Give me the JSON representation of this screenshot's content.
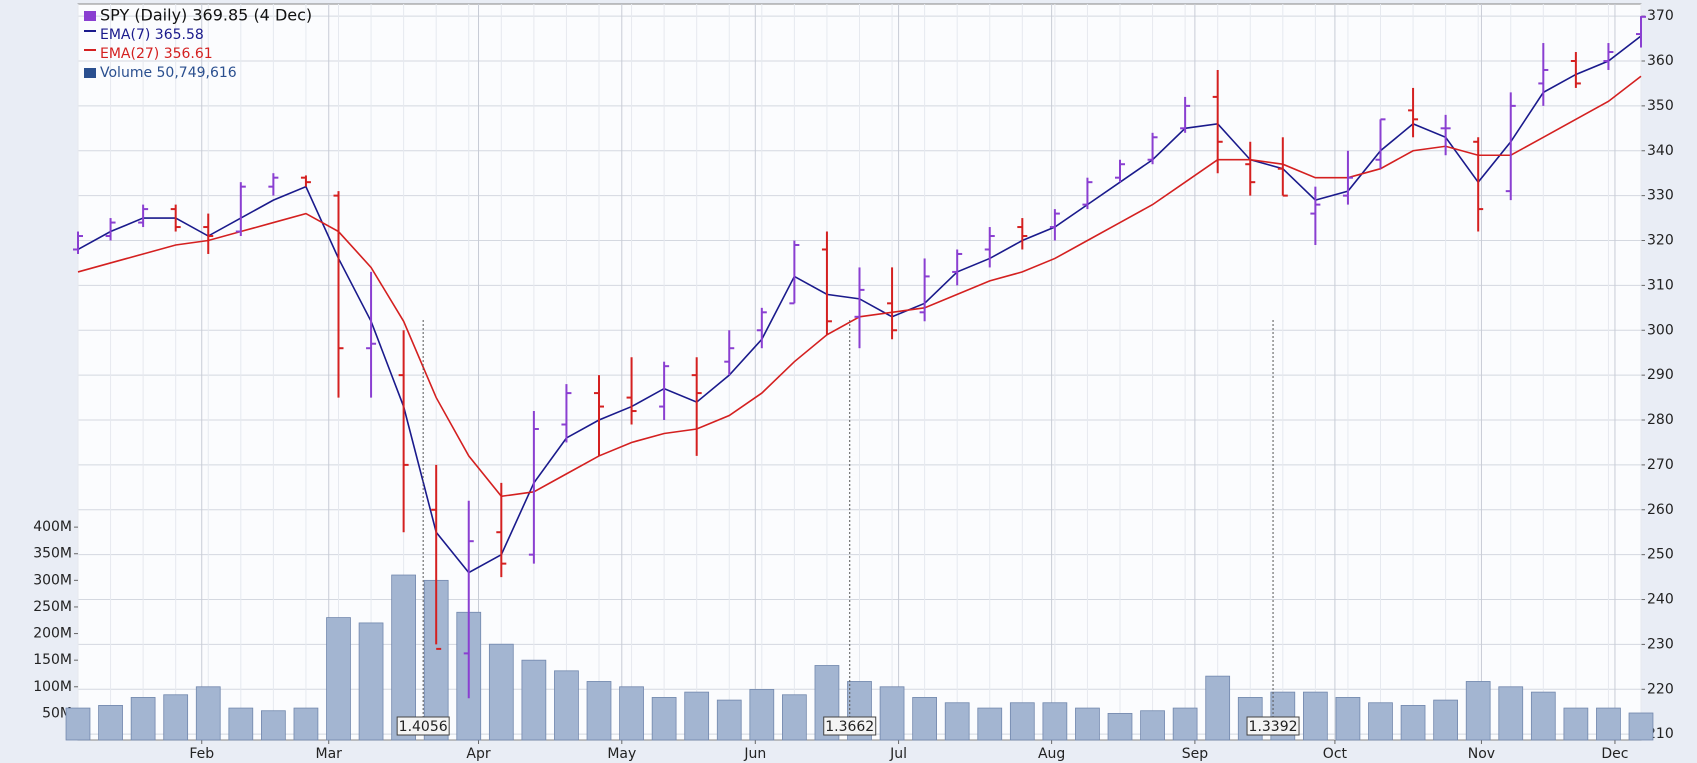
{
  "chart_data": {
    "type": "ohlc",
    "legend": [
      "SPY (Daily) 369.85 (4 Dec)",
      "EMA(7) 365.58",
      "EMA(27) 356.61",
      "Volume 50,749,616"
    ],
    "xlim": [
      0,
      48
    ],
    "xticks": [
      {
        "value": 3.8,
        "label": "Feb"
      },
      {
        "value": 7.7,
        "label": "Mar"
      },
      {
        "value": 12.3,
        "label": "Apr"
      },
      {
        "value": 16.7,
        "label": "May"
      },
      {
        "value": 20.8,
        "label": "Jun"
      },
      {
        "value": 25.2,
        "label": "Jul"
      },
      {
        "value": 29.9,
        "label": "Aug"
      },
      {
        "value": 34.3,
        "label": "Sep"
      },
      {
        "value": 38.6,
        "label": "Oct"
      },
      {
        "value": 43.1,
        "label": "Nov"
      },
      {
        "value": 47.2,
        "label": "Dec"
      }
    ],
    "ylim": [
      208.7,
      372.7
    ],
    "yticks": [
      210,
      220,
      230,
      240,
      250,
      260,
      270,
      280,
      290,
      300,
      310,
      320,
      330,
      340,
      350,
      360,
      370
    ],
    "y2lim": [
      0,
      1383000000
    ],
    "y2ticks": [
      {
        "value": 50000000,
        "label": "50M"
      },
      {
        "value": 100000000,
        "label": "100M"
      },
      {
        "value": 150000000,
        "label": "150M"
      },
      {
        "value": 200000000,
        "label": "200M"
      },
      {
        "value": 250000000,
        "label": "250M"
      },
      {
        "value": 300000000,
        "label": "300M"
      },
      {
        "value": 350000000,
        "label": "350M"
      },
      {
        "value": 400000000,
        "label": "400M"
      }
    ],
    "grid": true,
    "up_color": "#8a3fd1",
    "down_color": "#d42020",
    "open": [
      318,
      321,
      324,
      327,
      323,
      322,
      332,
      334,
      330,
      296,
      290,
      260,
      228,
      255,
      250,
      279,
      286,
      285,
      283,
      290,
      293,
      300,
      306,
      318,
      303,
      306,
      304,
      313,
      318,
      323,
      323,
      328,
      334,
      338,
      345,
      352,
      337,
      336,
      326,
      330,
      338,
      349,
      345,
      342,
      331,
      355,
      360,
      360,
      366
    ],
    "high": [
      322,
      325,
      328,
      328,
      326,
      333,
      335,
      334.5,
      331,
      313,
      300,
      270,
      262,
      266,
      282,
      288,
      290,
      294,
      293,
      294,
      300,
      305,
      320,
      322,
      314,
      314,
      316,
      318,
      323,
      325,
      327,
      334,
      338,
      344,
      352,
      358,
      342,
      343,
      332,
      340,
      347,
      354,
      348,
      343,
      353,
      364,
      362,
      364,
      370
    ],
    "low": [
      317,
      320,
      323,
      322,
      317,
      321,
      330,
      332,
      285,
      285,
      255,
      230,
      218,
      245,
      248,
      275,
      272,
      279,
      280,
      272,
      290,
      296,
      306,
      299,
      296,
      298,
      302,
      310,
      314,
      318,
      320,
      327,
      333,
      337,
      344,
      335,
      330,
      330,
      319,
      328,
      336,
      343,
      339,
      322,
      329,
      350,
      354,
      358,
      363
    ],
    "close": [
      321,
      324,
      327,
      323,
      321,
      332,
      334,
      333,
      296,
      297,
      270,
      229,
      253,
      248,
      278,
      286,
      283,
      282,
      292,
      286,
      296,
      304,
      319,
      302,
      309,
      300,
      312,
      317,
      321,
      321,
      326,
      333,
      337,
      343,
      350,
      342,
      333,
      330,
      328,
      334,
      347,
      347,
      345,
      327,
      350,
      358,
      355,
      362,
      369.85
    ],
    "ema_series": [
      {
        "name": "EMA(7)",
        "color": "#1a1a8c",
        "values": [
          318,
          322,
          325,
          325,
          321,
          325,
          329,
          332,
          316,
          302,
          283,
          255,
          246,
          250,
          266,
          276,
          280,
          283,
          287,
          284,
          290,
          298,
          312,
          308,
          307,
          303,
          306,
          313,
          316,
          320,
          323,
          328,
          333,
          338,
          345,
          346,
          338,
          336,
          329,
          331,
          340,
          346,
          343,
          333,
          342,
          353,
          357,
          360,
          365.58
        ]
      },
      {
        "name": "EMA(27)",
        "color": "#d42020",
        "values": [
          313,
          315,
          317,
          319,
          320,
          322,
          324,
          326,
          322,
          314,
          302,
          285,
          272,
          263,
          264,
          268,
          272,
          275,
          277,
          278,
          281,
          286,
          293,
          299,
          303,
          304,
          305,
          308,
          311,
          313,
          316,
          320,
          324,
          328,
          333,
          338,
          338,
          337,
          334,
          334,
          336,
          340,
          341,
          339,
          339,
          343,
          347,
          351,
          356.61
        ]
      }
    ],
    "volume": {
      "color": "#a3b5d1",
      "axis": "y2",
      "values": [
        60000000,
        65000000,
        80000000,
        85000000,
        100000000,
        60000000,
        55000000,
        60000000,
        230000000,
        220000000,
        310000000,
        300000000,
        240000000,
        180000000,
        150000000,
        130000000,
        110000000,
        100000000,
        80000000,
        90000000,
        75000000,
        95000000,
        85000000,
        140000000,
        110000000,
        100000000,
        80000000,
        70000000,
        60000000,
        70000000,
        70000000,
        60000000,
        50000000,
        55000000,
        60000000,
        120000000,
        80000000,
        90000000,
        90000000,
        80000000,
        70000000,
        65000000,
        75000000,
        110000000,
        100000000,
        90000000,
        60000000,
        60000000,
        50749616
      ]
    },
    "annotations": [
      {
        "x": 10.6,
        "label": "1.4056"
      },
      {
        "x": 23.7,
        "label": "1.3662"
      },
      {
        "x": 36.7,
        "label": "1.3392"
      }
    ]
  }
}
